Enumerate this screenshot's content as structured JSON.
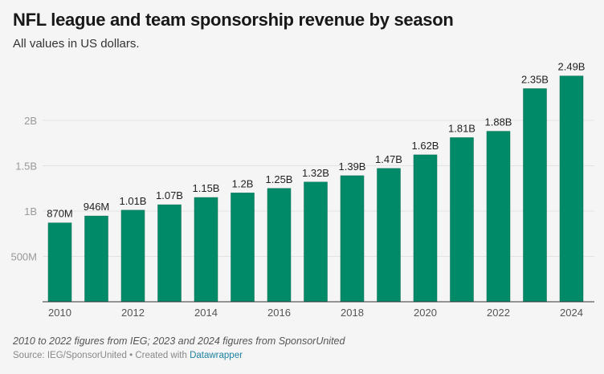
{
  "title": "NFL league and team sponsorship revenue by season",
  "subtitle": "All values in US dollars.",
  "notes": "2010 to 2022 figures from IEG; 2023 and 2024 figures from SponsorUnited",
  "source_prefix": "Source: IEG/SponsorUnited • Created with ",
  "source_link": "Datawrapper",
  "colors": {
    "bar": "#008a68",
    "grid": "#e2e2e2",
    "axis": "#333333",
    "background": "#f5f5f5"
  },
  "chart_data": {
    "type": "bar",
    "title": "NFL league and team sponsorship revenue by season",
    "xlabel": "",
    "ylabel": "",
    "unit": "billion USD",
    "categories": [
      "2010",
      "2011",
      "2012",
      "2013",
      "2014",
      "2015",
      "2016",
      "2017",
      "2018",
      "2019",
      "2020",
      "2021",
      "2022",
      "2023",
      "2024"
    ],
    "values": [
      0.87,
      0.946,
      1.01,
      1.07,
      1.15,
      1.2,
      1.25,
      1.32,
      1.39,
      1.47,
      1.62,
      1.81,
      1.88,
      2.35,
      2.49
    ],
    "data_labels": [
      "870M",
      "946M",
      "1.01B",
      "1.07B",
      "1.15B",
      "1.2B",
      "1.25B",
      "1.32B",
      "1.39B",
      "1.47B",
      "1.62B",
      "1.81B",
      "1.88B",
      "2.35B",
      "2.49B"
    ],
    "x_tick_labels": [
      "2010",
      "2012",
      "2014",
      "2016",
      "2018",
      "2020",
      "2022",
      "2024"
    ],
    "y_ticks": [
      0.5,
      1,
      1.5,
      2
    ],
    "y_tick_labels": [
      "500M",
      "1B",
      "1.5B",
      "2B"
    ],
    "ylim": [
      0,
      2.6
    ],
    "grid": true
  }
}
